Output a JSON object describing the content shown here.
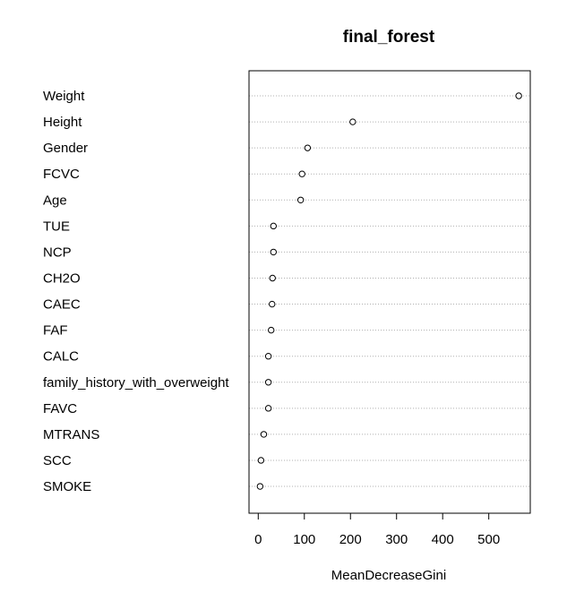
{
  "chart_data": {
    "type": "scatter",
    "title": "final_forest",
    "xlabel": "MeanDecreaseGini",
    "ylabel": "",
    "xlim": [
      -20,
      590
    ],
    "xticks": [
      0,
      100,
      200,
      300,
      400,
      500
    ],
    "grid": "dotted horizontal lines per variable",
    "categories": [
      "Weight",
      "Height",
      "Gender",
      "FCVC",
      "Age",
      "TUE",
      "NCP",
      "CH2O",
      "CAEC",
      "FAF",
      "CALC",
      "family_history_with_overweight",
      "FAVC",
      "MTRANS",
      "SCC",
      "SMOKE"
    ],
    "values": [
      565,
      205,
      107,
      95,
      92,
      33,
      33,
      31,
      30,
      28,
      22,
      22,
      22,
      12,
      6,
      4
    ]
  }
}
